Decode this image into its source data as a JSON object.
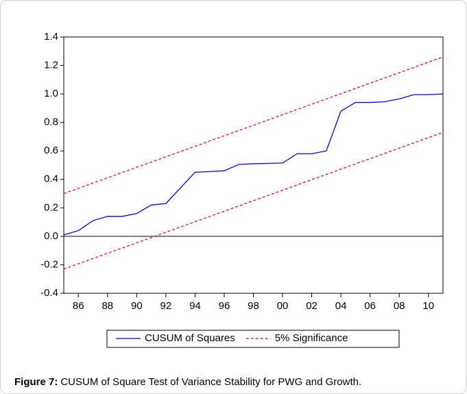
{
  "chart_data": {
    "type": "line",
    "x": [
      1985,
      1986,
      1987,
      1988,
      1989,
      1990,
      1991,
      1992,
      1993,
      1994,
      1995,
      1996,
      1997,
      1998,
      1999,
      2000,
      2001,
      2002,
      2003,
      2004,
      2005,
      2006,
      2007,
      2008,
      2009,
      2010,
      2011
    ],
    "series": [
      {
        "name": "CUSUM of Squares",
        "color": "#0000ff",
        "dash": false,
        "values": [
          0.01,
          0.04,
          0.11,
          0.14,
          0.14,
          0.16,
          0.22,
          0.23,
          0.34,
          0.45,
          0.455,
          0.46,
          0.505,
          0.51,
          0.512,
          0.515,
          0.58,
          0.58,
          0.6,
          0.88,
          0.94,
          0.94,
          0.945,
          0.965,
          0.995,
          0.995,
          1.0
        ]
      },
      {
        "name": "5% Significance",
        "color": "#ff0000",
        "dash": true,
        "x": [
          1985,
          2011
        ],
        "values": [
          0.3,
          1.26
        ]
      },
      {
        "color": "#ff0000",
        "dash": true,
        "x": [
          1985,
          2011
        ],
        "values": [
          -0.23,
          0.73
        ]
      }
    ],
    "xlim": [
      1985,
      2011
    ],
    "xticks": [
      {
        "value": 1986,
        "label": "86"
      },
      {
        "value": 1988,
        "label": "88"
      },
      {
        "value": 1990,
        "label": "90"
      },
      {
        "value": 1992,
        "label": "92"
      },
      {
        "value": 1994,
        "label": "94"
      },
      {
        "value": 1996,
        "label": "96"
      },
      {
        "value": 1998,
        "label": "98"
      },
      {
        "value": 2000,
        "label": "00"
      },
      {
        "value": 2002,
        "label": "02"
      },
      {
        "value": 2004,
        "label": "04"
      },
      {
        "value": 2006,
        "label": "06"
      },
      {
        "value": 2008,
        "label": "08"
      },
      {
        "value": 2010,
        "label": "10"
      }
    ],
    "ylim": [
      -0.4,
      1.4
    ],
    "yticks": [
      -0.4,
      -0.2,
      {
        "value": 0,
        "label": "0.0"
      },
      0.2,
      0.4,
      0.6,
      0.8,
      {
        "value": 1,
        "label": "1.0"
      },
      1.2,
      1.4
    ],
    "legend": "bottom"
  },
  "caption": {
    "label": "Figure 7:",
    "text": "CUSUM of Square Test of Variance Stability for PWG and Growth."
  }
}
